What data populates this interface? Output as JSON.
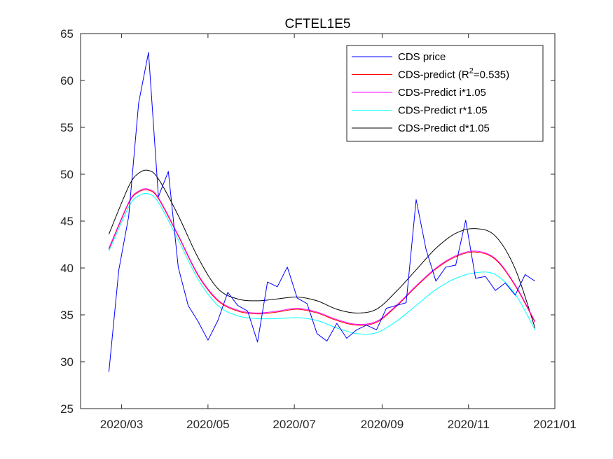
{
  "chart_data": {
    "type": "line",
    "title": "CFTEL1E5",
    "xlabel": "",
    "ylabel": "",
    "ylim": [
      25,
      65
    ],
    "yticks": [
      25,
      30,
      35,
      40,
      45,
      50,
      55,
      60,
      65
    ],
    "xlim": [
      "2020-02-01",
      "2021-01-01"
    ],
    "xticks": [
      {
        "date": "2020-03-01",
        "label": "2020/03"
      },
      {
        "date": "2020-05-01",
        "label": "2020/05"
      },
      {
        "date": "2020-07-01",
        "label": "2020/07"
      },
      {
        "date": "2020-09-01",
        "label": "2020/09"
      },
      {
        "date": "2020-11-01",
        "label": "2020/11"
      },
      {
        "date": "2021-01-01",
        "label": "2021/01"
      }
    ],
    "grid": false,
    "legend_position": "top-right",
    "series": [
      {
        "name": "CDS price",
        "name_parts": {
          "pre": "CDS price",
          "sup": "",
          "post": ""
        },
        "color": "#0000ff",
        "x": [
          "2020-02-21",
          "2020-02-28",
          "2020-03-06",
          "2020-03-13",
          "2020-03-20",
          "2020-03-27",
          "2020-04-03",
          "2020-04-10",
          "2020-04-17",
          "2020-04-24",
          "2020-05-01",
          "2020-05-08",
          "2020-05-15",
          "2020-05-22",
          "2020-05-29",
          "2020-06-05",
          "2020-06-12",
          "2020-06-19",
          "2020-06-26",
          "2020-07-03",
          "2020-07-10",
          "2020-07-17",
          "2020-07-24",
          "2020-07-31",
          "2020-08-07",
          "2020-08-14",
          "2020-08-21",
          "2020-08-28",
          "2020-09-04",
          "2020-09-11",
          "2020-09-18",
          "2020-09-25",
          "2020-10-02",
          "2020-10-09",
          "2020-10-16",
          "2020-10-23",
          "2020-10-30",
          "2020-11-06",
          "2020-11-13",
          "2020-11-20",
          "2020-11-27",
          "2020-12-04",
          "2020-12-11",
          "2020-12-18"
        ],
        "y": [
          28.9,
          39.8,
          45.5,
          57.6,
          63.0,
          47.6,
          50.3,
          40.1,
          36.0,
          34.3,
          32.3,
          34.4,
          37.4,
          36.0,
          35.4,
          32.1,
          38.5,
          38.0,
          40.1,
          36.8,
          36.2,
          33.0,
          32.2,
          34.1,
          32.5,
          33.4,
          33.9,
          33.4,
          35.7,
          36.0,
          36.3,
          47.3,
          42.0,
          38.6,
          40.1,
          40.3,
          45.1,
          38.9,
          39.1,
          37.6,
          38.4,
          37.1,
          39.3,
          38.6
        ]
      },
      {
        "name": "CDS-predict (R2=0.535)",
        "name_parts": {
          "pre": "CDS-predict (R",
          "sup": "2",
          "post": "=0.535)"
        },
        "color": "#ff0000",
        "x": [
          "2020-02-21",
          "2020-03-06",
          "2020-03-13",
          "2020-03-20",
          "2020-03-27",
          "2020-04-10",
          "2020-04-24",
          "2020-05-08",
          "2020-05-22",
          "2020-06-05",
          "2020-06-19",
          "2020-07-03",
          "2020-07-17",
          "2020-07-31",
          "2020-08-14",
          "2020-08-28",
          "2020-09-11",
          "2020-09-25",
          "2020-10-09",
          "2020-10-23",
          "2020-11-06",
          "2020-11-20",
          "2020-12-04",
          "2020-12-18"
        ],
        "y": [
          42.0,
          46.9,
          48.1,
          48.3,
          47.4,
          43.4,
          39.2,
          36.5,
          35.4,
          35.1,
          35.3,
          35.6,
          35.2,
          34.4,
          33.9,
          34.2,
          35.9,
          38.0,
          39.9,
          41.2,
          41.7,
          40.9,
          38.1,
          34.2
        ]
      },
      {
        "name": "CDS-Predict i*1.05",
        "name_parts": {
          "pre": "CDS-Predict i*1.05",
          "sup": "",
          "post": ""
        },
        "color": "#ff00ff",
        "x": [
          "2020-02-21",
          "2020-03-06",
          "2020-03-13",
          "2020-03-20",
          "2020-03-27",
          "2020-04-10",
          "2020-04-24",
          "2020-05-08",
          "2020-05-22",
          "2020-06-05",
          "2020-06-19",
          "2020-07-03",
          "2020-07-17",
          "2020-07-31",
          "2020-08-14",
          "2020-08-28",
          "2020-09-11",
          "2020-09-25",
          "2020-10-09",
          "2020-10-23",
          "2020-11-06",
          "2020-11-20",
          "2020-12-04",
          "2020-12-18"
        ],
        "y": [
          42.1,
          47.0,
          48.2,
          48.4,
          47.5,
          43.5,
          39.3,
          36.6,
          35.5,
          35.2,
          35.4,
          35.7,
          35.3,
          34.5,
          34.0,
          34.3,
          36.0,
          38.1,
          40.0,
          41.3,
          41.8,
          41.0,
          38.2,
          34.3
        ]
      },
      {
        "name": "CDS-Predict r*1.05",
        "name_parts": {
          "pre": "CDS-Predict r*1.05",
          "sup": "",
          "post": ""
        },
        "color": "#00ffff",
        "x": [
          "2020-02-21",
          "2020-03-06",
          "2020-03-13",
          "2020-03-20",
          "2020-03-27",
          "2020-04-10",
          "2020-04-24",
          "2020-05-08",
          "2020-05-22",
          "2020-06-05",
          "2020-06-19",
          "2020-07-03",
          "2020-07-17",
          "2020-07-31",
          "2020-08-14",
          "2020-08-28",
          "2020-09-11",
          "2020-09-25",
          "2020-10-09",
          "2020-10-23",
          "2020-11-06",
          "2020-11-20",
          "2020-12-04",
          "2020-12-18"
        ],
        "y": [
          41.8,
          46.5,
          47.7,
          47.9,
          47.0,
          43.0,
          38.8,
          36.0,
          34.9,
          34.6,
          34.6,
          34.7,
          34.4,
          33.6,
          33.0,
          33.1,
          34.3,
          36.0,
          37.7,
          38.9,
          39.5,
          39.3,
          37.2,
          33.4
        ]
      },
      {
        "name": "CDS-Predict d*1.05",
        "name_parts": {
          "pre": "CDS-Predict d*1.05",
          "sup": "",
          "post": ""
        },
        "color": "#000000",
        "x": [
          "2020-02-21",
          "2020-03-06",
          "2020-03-13",
          "2020-03-20",
          "2020-03-27",
          "2020-04-10",
          "2020-04-24",
          "2020-05-08",
          "2020-05-22",
          "2020-06-05",
          "2020-06-19",
          "2020-07-03",
          "2020-07-17",
          "2020-07-31",
          "2020-08-14",
          "2020-08-28",
          "2020-09-11",
          "2020-09-25",
          "2020-10-09",
          "2020-10-23",
          "2020-11-06",
          "2020-11-20",
          "2020-12-04",
          "2020-12-18"
        ],
        "y": [
          43.6,
          48.7,
          50.1,
          50.4,
          49.5,
          45.6,
          41.1,
          37.8,
          36.7,
          36.5,
          36.7,
          36.9,
          36.5,
          35.6,
          35.2,
          35.6,
          37.5,
          39.8,
          42.1,
          43.7,
          44.2,
          43.4,
          39.9,
          33.6
        ]
      }
    ]
  }
}
